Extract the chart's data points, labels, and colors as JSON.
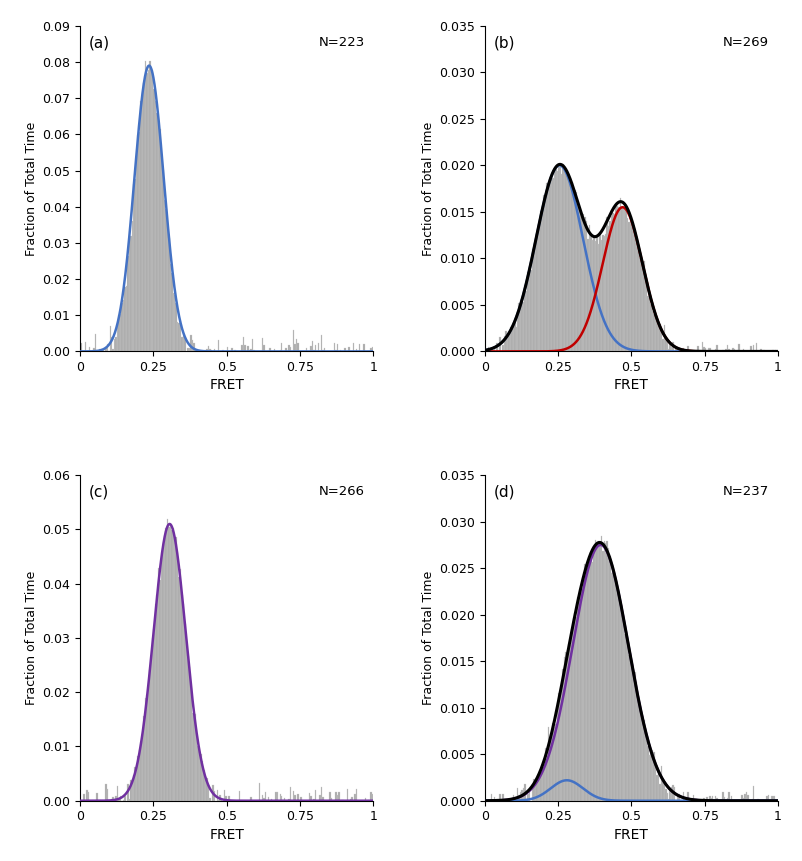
{
  "subplots": [
    {
      "label": "(a)",
      "N": "N=223",
      "ylim": [
        0,
        0.09
      ],
      "yticks": [
        0,
        0.01,
        0.02,
        0.03,
        0.04,
        0.05,
        0.06,
        0.07,
        0.08,
        0.09
      ],
      "hist_gaussians": [
        {
          "mu": 0.235,
          "sigma": 0.048,
          "amplitude": 0.079
        }
      ],
      "gaussians": [
        {
          "mu": 0.235,
          "sigma": 0.05,
          "amplitude": 0.079,
          "color": "#4472C4"
        }
      ],
      "total_color": null
    },
    {
      "label": "(b)",
      "N": "N=269",
      "ylim": [
        0,
        0.035
      ],
      "yticks": [
        0,
        0.005,
        0.01,
        0.015,
        0.02,
        0.025,
        0.03,
        0.035
      ],
      "hist_gaussians": [
        {
          "mu": 0.255,
          "sigma": 0.08,
          "amplitude": 0.02
        },
        {
          "mu": 0.47,
          "sigma": 0.068,
          "amplitude": 0.015
        }
      ],
      "gaussians": [
        {
          "mu": 0.255,
          "sigma": 0.08,
          "amplitude": 0.02,
          "color": "#4472C4"
        },
        {
          "mu": 0.47,
          "sigma": 0.068,
          "amplitude": 0.0155,
          "color": "#C00000"
        }
      ],
      "total_color": "#000000"
    },
    {
      "label": "(c)",
      "N": "N=266",
      "ylim": [
        0,
        0.06
      ],
      "yticks": [
        0,
        0.01,
        0.02,
        0.03,
        0.04,
        0.05,
        0.06
      ],
      "hist_gaussians": [
        {
          "mu": 0.305,
          "sigma": 0.055,
          "amplitude": 0.051
        }
      ],
      "gaussians": [
        {
          "mu": 0.305,
          "sigma": 0.055,
          "amplitude": 0.051,
          "color": "#7030A0"
        }
      ],
      "total_color": null
    },
    {
      "label": "(d)",
      "N": "N=237",
      "ylim": [
        0,
        0.035
      ],
      "yticks": [
        0,
        0.005,
        0.01,
        0.015,
        0.02,
        0.025,
        0.03,
        0.035
      ],
      "hist_gaussians": [
        {
          "mu": 0.395,
          "sigma": 0.095,
          "amplitude": 0.0275
        },
        {
          "mu": 0.28,
          "sigma": 0.04,
          "amplitude": 0.0025
        }
      ],
      "gaussians": [
        {
          "mu": 0.395,
          "sigma": 0.095,
          "amplitude": 0.0275,
          "color": "#7030A0"
        },
        {
          "mu": 0.28,
          "sigma": 0.055,
          "amplitude": 0.0022,
          "color": "#4472C4"
        }
      ],
      "total_color": "#000000"
    }
  ],
  "xlabel": "FRET",
  "ylabel": "Fraction of Total Time",
  "xlim": [
    0,
    1
  ],
  "xticks": [
    0,
    0.25,
    0.5,
    0.75,
    1
  ],
  "xticklabels": [
    "0",
    "0.25",
    "0.5",
    "0.75",
    "1"
  ],
  "hist_color": "#aaaaaa",
  "hist_edgecolor": "#cccccc",
  "background_color": "#ffffff",
  "bin_width": 0.005
}
